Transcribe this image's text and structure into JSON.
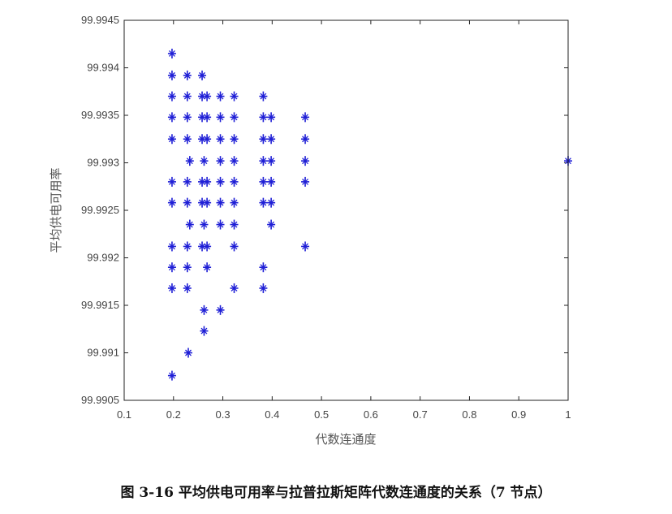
{
  "figure": {
    "caption": "图 3-16 平均供电可用率与拉普拉斯矩阵代数连通度的关系（7 节点）"
  },
  "chart_data": {
    "type": "scatter",
    "xlabel": "代数连通度",
    "ylabel": "平均供电可用率",
    "xlim": [
      0.1,
      1.0
    ],
    "ylim": [
      99.9905,
      99.9945
    ],
    "x_ticks": [
      "0.1",
      "0.2",
      "0.3",
      "0.4",
      "0.5",
      "0.6",
      "0.7",
      "0.8",
      "0.9",
      "1"
    ],
    "y_ticks": [
      "99.9905",
      "99.991",
      "99.9915",
      "99.992",
      "99.9925",
      "99.993",
      "99.9935",
      "99.994",
      "99.9945"
    ],
    "grid": false,
    "marker_color": "#1f1fd6",
    "points": [
      {
        "x": 0.197,
        "y": 99.99415
      },
      {
        "x": 0.197,
        "y": 99.99392
      },
      {
        "x": 0.197,
        "y": 99.9937
      },
      {
        "x": 0.197,
        "y": 99.99348
      },
      {
        "x": 0.197,
        "y": 99.99325
      },
      {
        "x": 0.197,
        "y": 99.9928
      },
      {
        "x": 0.197,
        "y": 99.99258
      },
      {
        "x": 0.197,
        "y": 99.99212
      },
      {
        "x": 0.197,
        "y": 99.9919
      },
      {
        "x": 0.197,
        "y": 99.99168
      },
      {
        "x": 0.197,
        "y": 99.99076
      },
      {
        "x": 0.228,
        "y": 99.99392
      },
      {
        "x": 0.228,
        "y": 99.9937
      },
      {
        "x": 0.228,
        "y": 99.99348
      },
      {
        "x": 0.228,
        "y": 99.99325
      },
      {
        "x": 0.233,
        "y": 99.99302
      },
      {
        "x": 0.228,
        "y": 99.9928
      },
      {
        "x": 0.228,
        "y": 99.99258
      },
      {
        "x": 0.233,
        "y": 99.99235
      },
      {
        "x": 0.228,
        "y": 99.99212
      },
      {
        "x": 0.228,
        "y": 99.9919
      },
      {
        "x": 0.228,
        "y": 99.99168
      },
      {
        "x": 0.23,
        "y": 99.991
      },
      {
        "x": 0.258,
        "y": 99.99392
      },
      {
        "x": 0.258,
        "y": 99.9937
      },
      {
        "x": 0.258,
        "y": 99.99348
      },
      {
        "x": 0.258,
        "y": 99.99325
      },
      {
        "x": 0.262,
        "y": 99.99302
      },
      {
        "x": 0.258,
        "y": 99.9928
      },
      {
        "x": 0.258,
        "y": 99.99258
      },
      {
        "x": 0.262,
        "y": 99.99235
      },
      {
        "x": 0.258,
        "y": 99.99212
      },
      {
        "x": 0.262,
        "y": 99.99145
      },
      {
        "x": 0.262,
        "y": 99.99123
      },
      {
        "x": 0.268,
        "y": 99.9937
      },
      {
        "x": 0.268,
        "y": 99.99348
      },
      {
        "x": 0.268,
        "y": 99.99325
      },
      {
        "x": 0.268,
        "y": 99.9928
      },
      {
        "x": 0.268,
        "y": 99.99258
      },
      {
        "x": 0.268,
        "y": 99.99212
      },
      {
        "x": 0.268,
        "y": 99.9919
      },
      {
        "x": 0.295,
        "y": 99.9937
      },
      {
        "x": 0.295,
        "y": 99.99348
      },
      {
        "x": 0.295,
        "y": 99.99325
      },
      {
        "x": 0.295,
        "y": 99.99302
      },
      {
        "x": 0.295,
        "y": 99.9928
      },
      {
        "x": 0.295,
        "y": 99.99258
      },
      {
        "x": 0.295,
        "y": 99.99235
      },
      {
        "x": 0.295,
        "y": 99.99145
      },
      {
        "x": 0.323,
        "y": 99.9937
      },
      {
        "x": 0.323,
        "y": 99.99348
      },
      {
        "x": 0.323,
        "y": 99.99325
      },
      {
        "x": 0.323,
        "y": 99.99302
      },
      {
        "x": 0.323,
        "y": 99.9928
      },
      {
        "x": 0.323,
        "y": 99.99258
      },
      {
        "x": 0.323,
        "y": 99.99235
      },
      {
        "x": 0.323,
        "y": 99.99212
      },
      {
        "x": 0.323,
        "y": 99.99168
      },
      {
        "x": 0.382,
        "y": 99.9937
      },
      {
        "x": 0.382,
        "y": 99.99348
      },
      {
        "x": 0.382,
        "y": 99.99325
      },
      {
        "x": 0.382,
        "y": 99.99302
      },
      {
        "x": 0.382,
        "y": 99.9928
      },
      {
        "x": 0.382,
        "y": 99.99258
      },
      {
        "x": 0.382,
        "y": 99.9919
      },
      {
        "x": 0.382,
        "y": 99.99168
      },
      {
        "x": 0.398,
        "y": 99.99348
      },
      {
        "x": 0.398,
        "y": 99.99325
      },
      {
        "x": 0.398,
        "y": 99.99302
      },
      {
        "x": 0.398,
        "y": 99.9928
      },
      {
        "x": 0.398,
        "y": 99.99258
      },
      {
        "x": 0.398,
        "y": 99.99235
      },
      {
        "x": 0.467,
        "y": 99.99348
      },
      {
        "x": 0.467,
        "y": 99.99325
      },
      {
        "x": 0.467,
        "y": 99.99302
      },
      {
        "x": 0.467,
        "y": 99.9928
      },
      {
        "x": 0.467,
        "y": 99.99212
      },
      {
        "x": 1.0,
        "y": 99.99302
      }
    ]
  }
}
